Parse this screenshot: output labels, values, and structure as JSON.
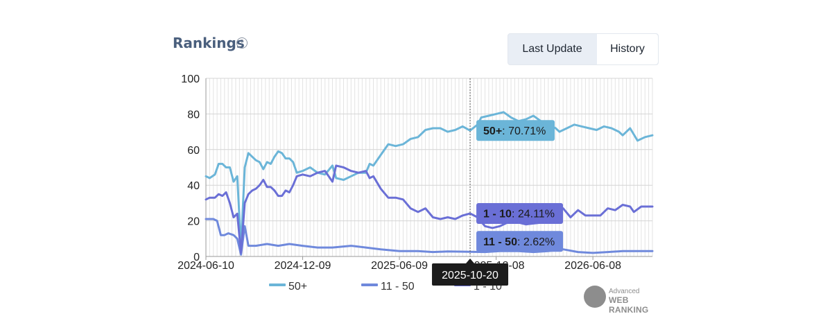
{
  "header": {
    "title": "Rankings",
    "help_icon": "?"
  },
  "toggle": {
    "last_update_label": "Last Update",
    "history_label": "History",
    "active": "History"
  },
  "logo": {
    "small": "Advanced",
    "big": "WEB RANKING"
  },
  "chart_data": {
    "type": "line",
    "ylim": [
      0,
      100
    ],
    "yticks": [
      0,
      20,
      40,
      60,
      80,
      100
    ],
    "x_range": [
      "2024-06-10",
      "2026-09-28"
    ],
    "xticks": [
      "2024-06-10",
      "2024-12-09",
      "2025-06-09",
      "2025-12-08",
      "2026-06-08"
    ],
    "grid": true,
    "legend_position": "bottom",
    "colors": {
      "50+": "#6bb5d8",
      "11 - 50": "#6f89dc",
      "1 - 10": "#6a6fd6"
    },
    "series": [
      {
        "name": "50+",
        "points": [
          [
            "2024-06-10",
            45
          ],
          [
            "2024-06-17",
            44
          ],
          [
            "2024-06-27",
            46
          ],
          [
            "2024-07-04",
            52
          ],
          [
            "2024-07-11",
            52
          ],
          [
            "2024-07-18",
            50
          ],
          [
            "2024-07-25",
            50
          ],
          [
            "2024-08-01",
            42
          ],
          [
            "2024-08-08",
            45
          ],
          [
            "2024-08-15",
            5
          ],
          [
            "2024-08-22",
            50
          ],
          [
            "2024-08-29",
            58
          ],
          [
            "2024-09-05",
            56
          ],
          [
            "2024-09-12",
            54
          ],
          [
            "2024-09-19",
            53
          ],
          [
            "2024-09-26",
            49
          ],
          [
            "2024-10-03",
            53
          ],
          [
            "2024-10-10",
            52
          ],
          [
            "2024-10-17",
            56
          ],
          [
            "2024-10-24",
            59
          ],
          [
            "2024-10-31",
            58
          ],
          [
            "2024-11-07",
            55
          ],
          [
            "2024-11-14",
            55
          ],
          [
            "2024-11-21",
            53
          ],
          [
            "2024-11-28",
            47
          ],
          [
            "2024-12-09",
            48
          ],
          [
            "2024-12-23",
            50
          ],
          [
            "2025-01-06",
            47
          ],
          [
            "2025-01-20",
            46
          ],
          [
            "2025-02-03",
            51
          ],
          [
            "2025-02-10",
            44
          ],
          [
            "2025-02-24",
            43
          ],
          [
            "2025-03-10",
            45
          ],
          [
            "2025-03-24",
            47
          ],
          [
            "2025-04-07",
            47
          ],
          [
            "2025-04-14",
            52
          ],
          [
            "2025-04-21",
            51
          ],
          [
            "2025-05-05",
            57
          ],
          [
            "2025-05-19",
            63
          ],
          [
            "2025-06-02",
            62
          ],
          [
            "2025-06-16",
            63
          ],
          [
            "2025-06-30",
            66
          ],
          [
            "2025-07-14",
            67
          ],
          [
            "2025-07-28",
            71
          ],
          [
            "2025-08-11",
            72
          ],
          [
            "2025-08-25",
            72
          ],
          [
            "2025-09-08",
            70
          ],
          [
            "2025-09-22",
            71
          ],
          [
            "2025-10-06",
            73
          ],
          [
            "2025-10-20",
            70.71
          ],
          [
            "2025-11-03",
            74
          ],
          [
            "2025-11-10",
            78
          ],
          [
            "2025-11-24",
            79
          ],
          [
            "2025-12-08",
            80
          ],
          [
            "2025-12-22",
            81
          ],
          [
            "2026-01-05",
            78
          ],
          [
            "2026-01-19",
            76
          ],
          [
            "2026-02-02",
            77
          ],
          [
            "2026-02-16",
            79
          ],
          [
            "2026-03-02",
            76
          ],
          [
            "2026-03-16",
            74
          ],
          [
            "2026-03-30",
            72
          ],
          [
            "2026-04-06",
            70
          ],
          [
            "2026-04-20",
            72
          ],
          [
            "2026-05-04",
            74
          ],
          [
            "2026-05-18",
            73
          ],
          [
            "2026-06-01",
            72
          ],
          [
            "2026-06-15",
            71
          ],
          [
            "2026-06-29",
            73
          ],
          [
            "2026-07-13",
            72
          ],
          [
            "2026-07-27",
            70
          ],
          [
            "2026-08-03",
            68
          ],
          [
            "2026-08-17",
            72
          ],
          [
            "2026-08-31",
            65
          ],
          [
            "2026-09-14",
            67
          ],
          [
            "2026-09-28",
            68
          ]
        ]
      },
      {
        "name": "11 - 50",
        "points": [
          [
            "2024-06-10",
            21
          ],
          [
            "2024-06-24",
            21
          ],
          [
            "2024-07-01",
            20
          ],
          [
            "2024-07-08",
            12
          ],
          [
            "2024-07-15",
            12
          ],
          [
            "2024-07-22",
            13
          ],
          [
            "2024-08-01",
            12
          ],
          [
            "2024-08-08",
            10
          ],
          [
            "2024-08-15",
            1
          ],
          [
            "2024-08-22",
            17
          ],
          [
            "2024-08-29",
            6
          ],
          [
            "2024-09-12",
            6
          ],
          [
            "2024-10-03",
            7
          ],
          [
            "2024-10-24",
            6
          ],
          [
            "2024-11-14",
            7
          ],
          [
            "2024-12-09",
            6
          ],
          [
            "2025-01-06",
            5
          ],
          [
            "2025-02-03",
            5
          ],
          [
            "2025-03-10",
            6
          ],
          [
            "2025-04-07",
            5
          ],
          [
            "2025-05-05",
            4
          ],
          [
            "2025-06-09",
            3
          ],
          [
            "2025-07-14",
            3
          ],
          [
            "2025-08-11",
            2.5
          ],
          [
            "2025-09-08",
            2.8
          ],
          [
            "2025-10-20",
            2.62
          ],
          [
            "2025-11-17",
            2.5
          ],
          [
            "2025-12-15",
            3
          ],
          [
            "2026-01-19",
            3
          ],
          [
            "2026-02-16",
            2.5
          ],
          [
            "2026-03-16",
            3
          ],
          [
            "2026-04-13",
            4
          ],
          [
            "2026-05-11",
            2.5
          ],
          [
            "2026-06-08",
            2
          ],
          [
            "2026-07-06",
            2.5
          ],
          [
            "2026-08-03",
            3
          ],
          [
            "2026-09-01",
            3
          ],
          [
            "2026-09-28",
            3
          ]
        ]
      },
      {
        "name": "1 - 10",
        "points": [
          [
            "2024-06-10",
            32
          ],
          [
            "2024-06-17",
            33
          ],
          [
            "2024-06-27",
            33
          ],
          [
            "2024-07-04",
            35
          ],
          [
            "2024-07-11",
            34
          ],
          [
            "2024-07-18",
            36
          ],
          [
            "2024-07-25",
            30
          ],
          [
            "2024-08-01",
            22
          ],
          [
            "2024-08-08",
            24
          ],
          [
            "2024-08-15",
            2
          ],
          [
            "2024-08-22",
            30
          ],
          [
            "2024-08-29",
            35
          ],
          [
            "2024-09-05",
            37
          ],
          [
            "2024-09-12",
            38
          ],
          [
            "2024-09-19",
            40
          ],
          [
            "2024-09-26",
            43
          ],
          [
            "2024-10-03",
            39
          ],
          [
            "2024-10-10",
            39
          ],
          [
            "2024-10-17",
            37
          ],
          [
            "2024-10-24",
            34
          ],
          [
            "2024-10-31",
            34
          ],
          [
            "2024-11-07",
            37
          ],
          [
            "2024-11-14",
            36
          ],
          [
            "2024-11-21",
            40
          ],
          [
            "2024-11-28",
            45
          ],
          [
            "2024-12-09",
            46
          ],
          [
            "2024-12-23",
            45
          ],
          [
            "2025-01-06",
            47
          ],
          [
            "2025-01-20",
            48
          ],
          [
            "2025-02-03",
            42
          ],
          [
            "2025-02-10",
            51
          ],
          [
            "2025-02-24",
            50
          ],
          [
            "2025-03-10",
            48
          ],
          [
            "2025-03-24",
            47
          ],
          [
            "2025-04-07",
            48
          ],
          [
            "2025-04-14",
            44
          ],
          [
            "2025-04-21",
            45
          ],
          [
            "2025-05-05",
            38
          ],
          [
            "2025-05-19",
            33
          ],
          [
            "2025-06-02",
            33
          ],
          [
            "2025-06-16",
            32
          ],
          [
            "2025-06-30",
            27
          ],
          [
            "2025-07-14",
            25
          ],
          [
            "2025-07-28",
            27
          ],
          [
            "2025-08-11",
            22
          ],
          [
            "2025-08-25",
            21
          ],
          [
            "2025-09-08",
            22
          ],
          [
            "2025-09-22",
            21
          ],
          [
            "2025-10-06",
            23
          ],
          [
            "2025-10-20",
            24.11
          ],
          [
            "2025-11-03",
            22
          ],
          [
            "2025-11-17",
            17
          ],
          [
            "2025-12-01",
            16
          ],
          [
            "2025-12-15",
            17
          ],
          [
            "2026-01-05",
            20
          ],
          [
            "2026-02-02",
            18
          ],
          [
            "2026-03-02",
            19
          ],
          [
            "2026-03-30",
            23
          ],
          [
            "2026-04-13",
            27
          ],
          [
            "2026-04-27",
            22
          ],
          [
            "2026-05-11",
            26
          ],
          [
            "2026-05-25",
            23
          ],
          [
            "2026-06-08",
            23
          ],
          [
            "2026-06-22",
            23
          ],
          [
            "2026-07-06",
            27
          ],
          [
            "2026-07-20",
            26
          ],
          [
            "2026-08-03",
            29
          ],
          [
            "2026-08-17",
            28
          ],
          [
            "2026-08-24",
            25
          ],
          [
            "2026-09-07",
            28
          ],
          [
            "2026-09-28",
            28
          ]
        ]
      }
    ],
    "crosshair_date": "2025-10-20",
    "tooltips": [
      {
        "label": "50+",
        "value": "70.71%",
        "color": "#6bb5d8"
      },
      {
        "label": "1 - 10",
        "value": "24.11%",
        "color": "#6a6fd6"
      },
      {
        "label": "11 - 50",
        "value": "2.62%",
        "color": "#6f89dc"
      }
    ],
    "x_tooltip": "2025-10-20"
  }
}
